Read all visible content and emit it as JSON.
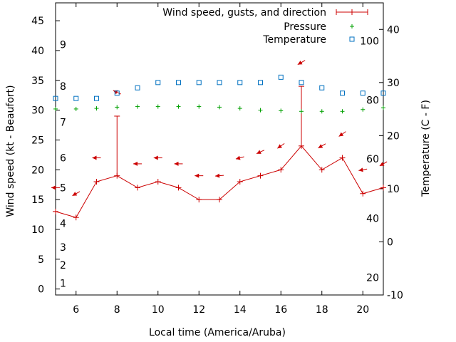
{
  "chart_data": {
    "type": "line",
    "xlabel": "Local time (America/Aruba)",
    "ylabel_left": "Wind speed (kt - Beaufort)",
    "ylabel_right": "Temperature (C - F)",
    "x_range": [
      5,
      21
    ],
    "y_left_range": [
      -1,
      48
    ],
    "y_right_range": [
      -10,
      45
    ],
    "x_ticks": [
      6,
      8,
      10,
      12,
      14,
      16,
      18,
      20
    ],
    "y_left_ticks": [
      0,
      5,
      10,
      15,
      20,
      25,
      30,
      35,
      40,
      45
    ],
    "y_right_ticks": [
      -10,
      0,
      10,
      20,
      30,
      40
    ],
    "beaufort_labels": [
      {
        "label": "1",
        "kt": 1
      },
      {
        "label": "2",
        "kt": 4
      },
      {
        "label": "3",
        "kt": 7
      },
      {
        "label": "4",
        "kt": 11
      },
      {
        "label": "5",
        "kt": 17
      },
      {
        "label": "6",
        "kt": 22
      },
      {
        "label": "7",
        "kt": 28
      },
      {
        "label": "8",
        "kt": 34
      },
      {
        "label": "9",
        "kt": 41
      }
    ],
    "fahrenheit_labels": [
      {
        "label": "20",
        "c": -6.7
      },
      {
        "label": "40",
        "c": 4.4
      },
      {
        "label": "60",
        "c": 15.6
      },
      {
        "label": "80",
        "c": 26.7
      },
      {
        "label": "100",
        "c": 37.8
      }
    ],
    "legend": [
      {
        "name": "Wind speed, gusts, and direction",
        "color": "#cc0000",
        "marker": "line-plus"
      },
      {
        "name": "Pressure",
        "color": "#00a000",
        "marker": "plus"
      },
      {
        "name": "Temperature",
        "color": "#0070c0",
        "marker": "square"
      }
    ],
    "wind": {
      "x": [
        5,
        6,
        7,
        8,
        9,
        10,
        11,
        12,
        13,
        14,
        15,
        16,
        17,
        18,
        19,
        20,
        21
      ],
      "speed": [
        13,
        12,
        18,
        19,
        17,
        18,
        17,
        15,
        15,
        18,
        19,
        20,
        24,
        20,
        22,
        16,
        17
      ],
      "gust_x": [
        8,
        17
      ],
      "gust": [
        29,
        34
      ],
      "direction_x": [
        5,
        6,
        7,
        8,
        9,
        10,
        11,
        12,
        13,
        14,
        15,
        16,
        17,
        18,
        19,
        20,
        21
      ],
      "direction_kt": [
        17,
        16,
        22,
        33,
        21,
        22,
        21,
        19,
        19,
        22,
        23,
        24,
        38,
        24,
        26,
        20,
        21
      ],
      "direction_deg": [
        90,
        60,
        90,
        115,
        90,
        90,
        90,
        90,
        85,
        75,
        65,
        55,
        60,
        60,
        55,
        80,
        60
      ]
    },
    "pressure": {
      "x": [
        5,
        6,
        7,
        8,
        9,
        10,
        11,
        12,
        13,
        14,
        15,
        16,
        17,
        18,
        19,
        20,
        21
      ],
      "y_left_units": [
        30.2,
        30.2,
        30.3,
        30.5,
        30.6,
        30.6,
        30.6,
        30.6,
        30.5,
        30.3,
        30.0,
        29.9,
        29.8,
        29.8,
        29.8,
        30.1,
        30.4
      ]
    },
    "temperature": {
      "x": [
        5,
        6,
        7,
        8,
        9,
        10,
        11,
        12,
        13,
        14,
        15,
        16,
        17,
        18,
        19,
        20,
        21
      ],
      "celsius": [
        27,
        27,
        27,
        28,
        29,
        30,
        30,
        30,
        30,
        30,
        30,
        31,
        30,
        29,
        28,
        28,
        28
      ]
    }
  }
}
